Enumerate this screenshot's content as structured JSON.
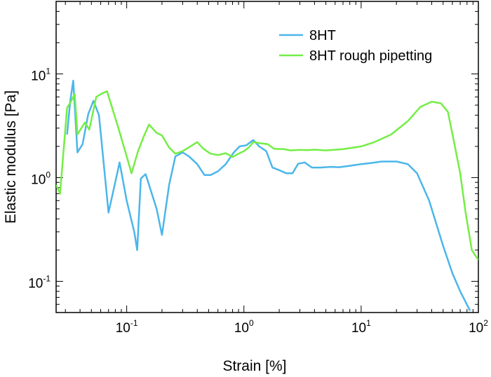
{
  "chart_data": {
    "type": "line",
    "xlabel": "Strain [%]",
    "ylabel": "Elastic modulus [Pa]",
    "xscale": "log",
    "yscale": "log",
    "xlim": [
      0.025,
      100
    ],
    "ylim": [
      0.05,
      50
    ],
    "grid": false,
    "legend": {
      "placement": "top-right"
    },
    "x_ticks": [
      {
        "value": 0.1,
        "base": "10",
        "exp": "-1"
      },
      {
        "value": 1,
        "base": "10",
        "exp": "0"
      },
      {
        "value": 10,
        "base": "10",
        "exp": "1"
      },
      {
        "value": 100,
        "base": "10",
        "exp": "2"
      }
    ],
    "y_ticks": [
      {
        "value": 0.1,
        "base": "10",
        "exp": "-1"
      },
      {
        "value": 1,
        "base": "10",
        "exp": "0"
      },
      {
        "value": 10,
        "base": "10",
        "exp": "1"
      }
    ],
    "series": [
      {
        "name": "8HT",
        "color": "#4bb6ea",
        "points": [
          [
            0.031,
            2.6
          ],
          [
            0.033,
            5.5
          ],
          [
            0.035,
            8.6
          ],
          [
            0.038,
            1.75
          ],
          [
            0.042,
            2.1
          ],
          [
            0.047,
            4.1
          ],
          [
            0.052,
            5.5
          ],
          [
            0.058,
            4.0
          ],
          [
            0.07,
            0.46
          ],
          [
            0.076,
            0.7
          ],
          [
            0.087,
            1.4
          ],
          [
            0.1,
            0.6
          ],
          [
            0.116,
            0.3
          ],
          [
            0.123,
            0.2
          ],
          [
            0.132,
            0.98
          ],
          [
            0.145,
            1.08
          ],
          [
            0.18,
            0.5
          ],
          [
            0.2,
            0.28
          ],
          [
            0.23,
            0.85
          ],
          [
            0.26,
            1.6
          ],
          [
            0.3,
            1.75
          ],
          [
            0.34,
            1.6
          ],
          [
            0.4,
            1.35
          ],
          [
            0.46,
            1.06
          ],
          [
            0.52,
            1.06
          ],
          [
            0.6,
            1.15
          ],
          [
            0.7,
            1.35
          ],
          [
            0.82,
            1.75
          ],
          [
            0.92,
            2.0
          ],
          [
            1.05,
            2.05
          ],
          [
            1.2,
            2.3
          ],
          [
            1.35,
            2.0
          ],
          [
            1.55,
            1.8
          ],
          [
            1.75,
            1.25
          ],
          [
            2.0,
            1.18
          ],
          [
            2.3,
            1.1
          ],
          [
            2.6,
            1.1
          ],
          [
            2.9,
            1.36
          ],
          [
            3.3,
            1.4
          ],
          [
            3.8,
            1.25
          ],
          [
            4.5,
            1.25
          ],
          [
            5.5,
            1.27
          ],
          [
            6.5,
            1.26
          ],
          [
            8,
            1.3
          ],
          [
            10,
            1.35
          ],
          [
            12,
            1.38
          ],
          [
            15,
            1.43
          ],
          [
            20,
            1.43
          ],
          [
            25,
            1.35
          ],
          [
            30,
            1.1
          ],
          [
            38,
            0.6
          ],
          [
            50,
            0.22
          ],
          [
            60,
            0.12
          ],
          [
            70,
            0.08
          ],
          [
            85,
            0.052
          ]
        ]
      },
      {
        "name": "8HT rough pipetting",
        "color": "#74ee45",
        "points": [
          [
            0.025,
            0.85
          ],
          [
            0.027,
            0.7
          ],
          [
            0.031,
            4.7
          ],
          [
            0.034,
            5.6
          ],
          [
            0.036,
            6.4
          ],
          [
            0.038,
            2.6
          ],
          [
            0.044,
            3.4
          ],
          [
            0.048,
            2.9
          ],
          [
            0.055,
            6.0
          ],
          [
            0.062,
            6.5
          ],
          [
            0.068,
            6.8
          ],
          [
            0.085,
            3.0
          ],
          [
            0.1,
            1.6
          ],
          [
            0.11,
            1.1
          ],
          [
            0.125,
            1.8
          ],
          [
            0.14,
            2.5
          ],
          [
            0.155,
            3.25
          ],
          [
            0.18,
            2.7
          ],
          [
            0.2,
            2.55
          ],
          [
            0.23,
            1.95
          ],
          [
            0.26,
            1.7
          ],
          [
            0.3,
            1.8
          ],
          [
            0.35,
            2.0
          ],
          [
            0.4,
            2.2
          ],
          [
            0.45,
            1.9
          ],
          [
            0.52,
            1.7
          ],
          [
            0.6,
            1.65
          ],
          [
            0.7,
            1.72
          ],
          [
            0.8,
            1.58
          ],
          [
            0.9,
            1.7
          ],
          [
            1.0,
            1.8
          ],
          [
            1.1,
            1.95
          ],
          [
            1.2,
            2.2
          ],
          [
            1.35,
            2.15
          ],
          [
            1.6,
            2.1
          ],
          [
            1.8,
            1.9
          ],
          [
            2.2,
            1.88
          ],
          [
            2.5,
            1.83
          ],
          [
            3,
            1.85
          ],
          [
            3.5,
            1.84
          ],
          [
            4,
            1.86
          ],
          [
            5,
            1.83
          ],
          [
            7,
            1.88
          ],
          [
            10,
            2.0
          ],
          [
            13,
            2.2
          ],
          [
            18,
            2.6
          ],
          [
            25,
            3.5
          ],
          [
            32,
            4.8
          ],
          [
            40,
            5.4
          ],
          [
            48,
            5.2
          ],
          [
            55,
            4.3
          ],
          [
            62,
            2.2
          ],
          [
            70,
            1.1
          ],
          [
            78,
            0.45
          ],
          [
            88,
            0.2
          ],
          [
            100,
            0.16
          ]
        ]
      }
    ]
  }
}
